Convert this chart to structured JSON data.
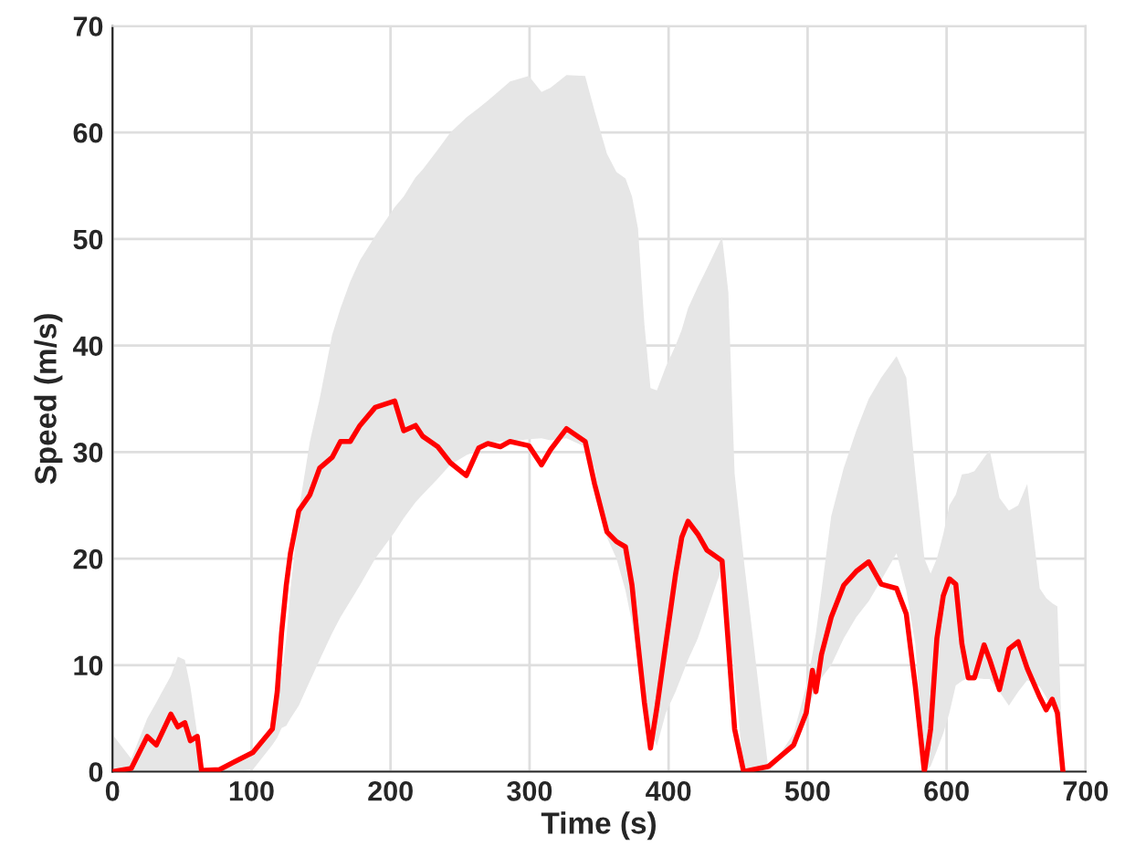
{
  "chart_data": {
    "type": "line",
    "xlabel": "Time (s)",
    "ylabel": "Speed (m/s)",
    "xlim": [
      0,
      700
    ],
    "xticks": [
      0,
      100,
      200,
      300,
      400,
      500,
      600,
      700
    ],
    "ylim": [
      0,
      70
    ],
    "yticks": [
      0,
      10,
      20,
      30,
      40,
      50,
      60,
      70
    ],
    "grid": true,
    "line_style": "solid",
    "series": [
      {
        "color": "#ff0000",
        "x": [
          0,
          13.5,
          25,
          31.5,
          42,
          47,
          52,
          56,
          61,
          64,
          77,
          101,
          115,
          118.5,
          121.6,
          125,
          128,
          134,
          142,
          149,
          158,
          164,
          171,
          178,
          189,
          203,
          209.5,
          218,
          223,
          234,
          243,
          254.5,
          263.5,
          270,
          279,
          286,
          299.5,
          308.6,
          315,
          326.6,
          340,
          346.8,
          355.7,
          362.5,
          369,
          373.7,
          378,
          382.6,
          387,
          391.6,
          398,
          405,
          409.5,
          414,
          421,
          427.5,
          438.5,
          443,
          447.5,
          454,
          472,
          490,
          499,
          503.5,
          506,
          510,
          517,
          526,
          535,
          544,
          553,
          564,
          571,
          577.5,
          584,
          588.5,
          593,
          597.6,
          602,
          606.6,
          611,
          615.6,
          620,
          627,
          631,
          638,
          644.8,
          651.5,
          658,
          667,
          671.6,
          676,
          679.7,
          683.7
        ],
        "values": [
          0,
          0.3,
          3.3,
          2.5,
          5.4,
          4.2,
          4.6,
          2.9,
          3.3,
          0.1,
          0.2,
          1.8,
          4,
          7.5,
          13,
          17.5,
          20.5,
          24.5,
          26,
          28.5,
          29.5,
          31,
          31,
          32.5,
          34.2,
          34.8,
          32,
          32.5,
          31.5,
          30.5,
          29,
          27.8,
          30.4,
          30.8,
          30.5,
          31,
          30.6,
          28.8,
          30.2,
          32.2,
          31,
          27,
          22.5,
          21.6,
          21.1,
          17.5,
          12,
          6.5,
          2.2,
          6,
          12,
          18.5,
          22,
          23.5,
          22.3,
          20.8,
          19.8,
          12,
          4,
          0,
          0.5,
          2.5,
          5.5,
          9.5,
          7.5,
          11,
          14.5,
          17.5,
          18.8,
          19.7,
          17.6,
          17.2,
          14.8,
          8,
          0,
          4,
          12.5,
          16.5,
          18.1,
          17.6,
          12,
          8.8,
          8.8,
          11.9,
          10.5,
          7.7,
          11.5,
          12.2,
          9.7,
          7,
          5.8,
          6.8,
          5.5,
          0
        ],
        "upper": [
          3.5,
          1.2,
          5,
          6.5,
          9,
          10.8,
          10.5,
          8,
          3.5,
          0.5,
          0,
          1.5,
          4.5,
          6.5,
          9,
          12.5,
          17,
          24.5,
          31,
          35,
          41,
          43.5,
          46,
          48,
          50.3,
          53,
          54,
          55.8,
          56.5,
          58.4,
          60,
          61.4,
          62.3,
          63,
          64,
          64.8,
          65.3,
          63.8,
          64.2,
          65.4,
          65.3,
          62,
          58,
          56.3,
          55.7,
          54,
          51,
          42,
          36,
          35.8,
          38,
          40,
          41.5,
          43.5,
          45.5,
          47.2,
          50.2,
          45,
          28,
          20,
          0,
          3.6,
          8,
          11,
          13,
          17,
          24,
          28.5,
          32,
          35,
          37,
          39,
          37,
          28,
          20,
          18.6,
          20,
          22.3,
          25,
          26,
          27.9,
          28,
          28.2,
          29.5,
          30.2,
          25.7,
          24.5,
          25,
          27,
          17.2,
          16.3,
          15.8,
          15.5,
          0
        ],
        "lower": [
          0,
          0,
          0,
          0,
          0,
          0,
          0,
          0,
          0,
          0,
          0,
          0.2,
          2.5,
          3.2,
          4.1,
          4.3,
          5,
          6.2,
          8.5,
          10.5,
          13,
          14.5,
          16,
          17.5,
          20,
          22.5,
          23.8,
          25.3,
          26,
          27.5,
          28.8,
          29.7,
          30.2,
          30.8,
          31,
          31,
          31.2,
          31.3,
          31.1,
          31.3,
          30.5,
          28.5,
          22,
          20,
          17,
          14,
          10.5,
          8.1,
          4,
          2.4,
          5.5,
          7.5,
          9,
          10.5,
          12.5,
          15,
          19.2,
          14,
          9,
          0,
          0,
          2.5,
          5.3,
          7,
          7.8,
          8.8,
          10,
          12.5,
          14.5,
          16,
          18,
          20.5,
          17,
          12,
          0,
          0.5,
          2,
          3.6,
          5.5,
          8.1,
          8.5,
          8.8,
          8.8,
          8.7,
          8.7,
          7.5,
          6.2,
          7.5,
          8.6,
          8,
          7,
          6,
          5.2,
          0
        ]
      }
    ]
  }
}
